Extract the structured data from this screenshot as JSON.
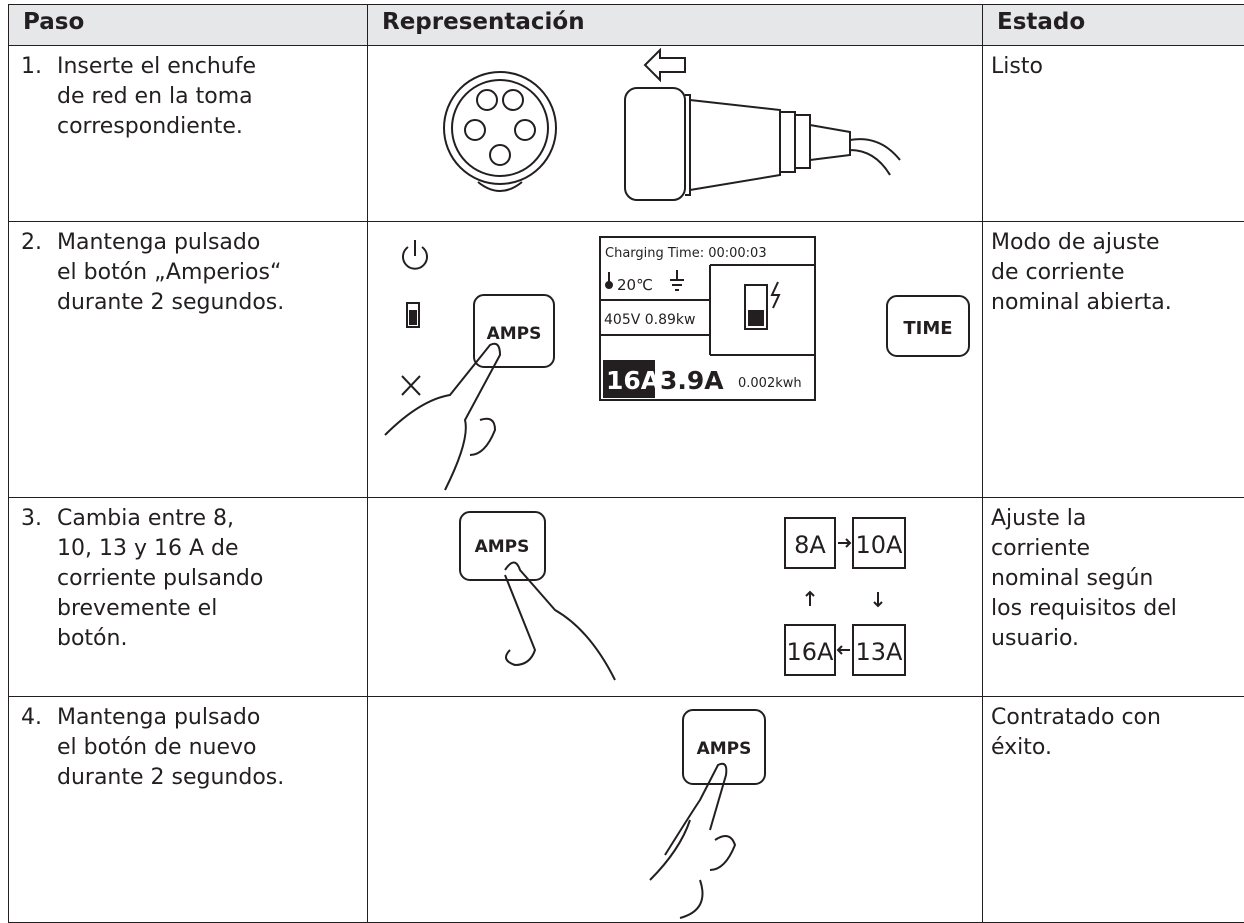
{
  "table": {
    "header": [
      "Paso",
      "Representación",
      "Estado"
    ],
    "rows": [
      {
        "number": "1.",
        "step": [
          "Inserte el enchufe",
          "de red en la toma",
          "correspondiente."
        ],
        "state": [
          "Listo"
        ]
      },
      {
        "number": "2.",
        "step": [
          "Mantenga pulsado",
          "el botón „Amperios“",
          "durante 2 segundos."
        ],
        "state": [
          "Modo de ajuste",
          "de corriente",
          "nominal abierta."
        ],
        "illustration": {
          "button": "AMPS",
          "time_button": "TIME",
          "display": {
            "charging_time": "Charging Time: 00:00:03",
            "temperature": "20℃",
            "power": "405V 0.89kw",
            "set_current": "16A",
            "current": "3.9A",
            "energy": "0.002kwh"
          }
        }
      },
      {
        "number": "3.",
        "step": [
          "Cambia entre 8,",
          "10, 13 y 16 A de",
          "corriente pulsando",
          "brevemente el",
          "botón."
        ],
        "state": [
          "Ajuste la",
          "corriente",
          "nominal según",
          "los requisitos del",
          "usuario."
        ],
        "illustration": {
          "button": "AMPS",
          "steps": [
            "8A",
            "10A",
            "13A",
            "16A"
          ]
        }
      },
      {
        "number": "4.",
        "step": [
          "Mantenga pulsado",
          "el botón de nuevo",
          "durante 2 segundos."
        ],
        "state": [
          "Contratado con",
          "éxito."
        ],
        "illustration": {
          "button": "AMPS"
        }
      }
    ]
  }
}
